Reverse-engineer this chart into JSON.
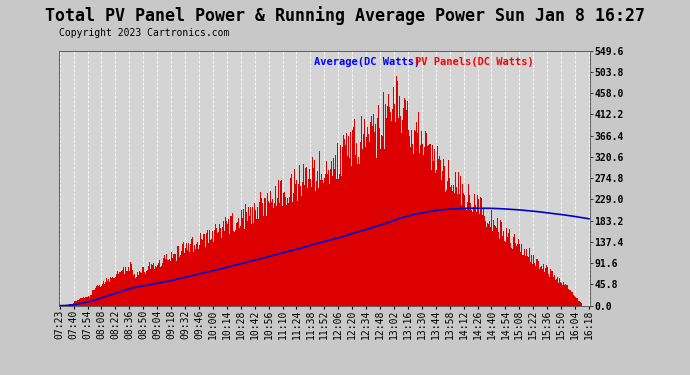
{
  "title": "Total PV Panel Power & Running Average Power Sun Jan 8 16:27",
  "copyright": "Copyright 2023 Cartronics.com",
  "legend_avg": "Average(DC Watts)",
  "legend_pv": "PV Panels(DC Watts)",
  "ymin": 0.0,
  "ymax": 549.6,
  "yticks": [
    0.0,
    45.8,
    91.6,
    137.4,
    183.2,
    229.0,
    274.8,
    320.6,
    366.4,
    412.2,
    458.0,
    503.8,
    549.6
  ],
  "xtick_labels": [
    "07:23",
    "07:40",
    "07:54",
    "08:08",
    "08:22",
    "08:36",
    "08:50",
    "09:04",
    "09:18",
    "09:32",
    "09:46",
    "10:00",
    "10:14",
    "10:28",
    "10:42",
    "10:56",
    "11:10",
    "11:24",
    "11:38",
    "11:52",
    "12:06",
    "12:20",
    "12:34",
    "12:48",
    "13:02",
    "13:16",
    "13:30",
    "13:44",
    "13:58",
    "14:12",
    "14:26",
    "14:40",
    "14:54",
    "15:08",
    "15:22",
    "15:36",
    "15:50",
    "16:04",
    "16:18"
  ],
  "bg_color": "#c8c8c8",
  "plot_bg_color": "#d4d4d4",
  "grid_color": "#ffffff",
  "title_color": "#000000",
  "bar_color": "#dd0000",
  "avg_line_color": "#0000cc",
  "pv_color_legend": "#ff0000",
  "avg_color_legend": "#0000ff",
  "title_fontsize": 12,
  "tick_fontsize": 7,
  "copyright_fontsize": 7
}
